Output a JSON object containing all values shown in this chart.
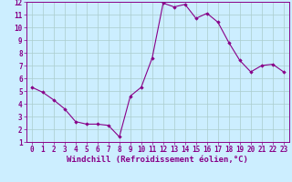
{
  "x": [
    0,
    1,
    2,
    3,
    4,
    5,
    6,
    7,
    8,
    9,
    10,
    11,
    12,
    13,
    14,
    15,
    16,
    17,
    18,
    19,
    20,
    21,
    22,
    23
  ],
  "y": [
    5.3,
    4.9,
    4.3,
    3.6,
    2.6,
    2.4,
    2.4,
    2.3,
    1.4,
    4.6,
    5.3,
    7.6,
    11.9,
    11.6,
    11.8,
    10.7,
    11.1,
    10.4,
    8.8,
    7.4,
    6.5,
    7.0,
    7.1,
    6.5
  ],
  "line_color": "#880088",
  "marker_color": "#880088",
  "bg_color": "#cceeff",
  "grid_color": "#aacccc",
  "axis_color": "#880088",
  "xlabel": "Windchill (Refroidissement éolien,°C)",
  "xlim": [
    -0.5,
    23.5
  ],
  "ylim": [
    1,
    12
  ],
  "yticks": [
    1,
    2,
    3,
    4,
    5,
    6,
    7,
    8,
    9,
    10,
    11,
    12
  ],
  "xticks": [
    0,
    1,
    2,
    3,
    4,
    5,
    6,
    7,
    8,
    9,
    10,
    11,
    12,
    13,
    14,
    15,
    16,
    17,
    18,
    19,
    20,
    21,
    22,
    23
  ],
  "tick_fontsize": 5.5,
  "label_fontsize": 6.5
}
